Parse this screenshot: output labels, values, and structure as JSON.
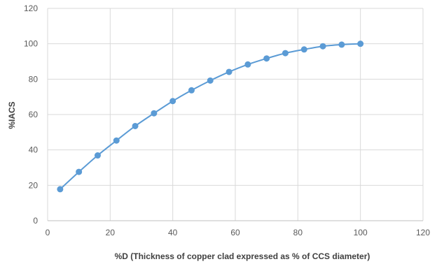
{
  "chart_data": {
    "type": "scatter",
    "title": "",
    "xlabel": "%D (Thickness of copper clad expressed as % of CCS diameter)",
    "ylabel": "%IACS",
    "xlim": [
      0,
      120
    ],
    "ylim": [
      0,
      120
    ],
    "x_ticks": [
      "0",
      "20",
      "40",
      "60",
      "80",
      "100",
      "120"
    ],
    "y_ticks": [
      "0",
      "20",
      "40",
      "60",
      "80",
      "100",
      "120"
    ],
    "grid": true,
    "legend": "none",
    "line_color": "#5b9bd5",
    "marker_color": "#5b9bd5",
    "grid_color": "#d9d9d9",
    "series": [
      {
        "x": [
          4,
          10,
          16,
          22,
          28,
          34,
          40,
          46,
          52,
          58,
          64,
          70,
          76,
          82,
          88,
          94,
          100
        ],
        "y": [
          17.8,
          27.6,
          36.9,
          45.3,
          53.5,
          60.7,
          67.6,
          73.7,
          79.2,
          84.1,
          88.3,
          91.7,
          94.7,
          96.8,
          98.6,
          99.5,
          100
        ]
      }
    ]
  }
}
